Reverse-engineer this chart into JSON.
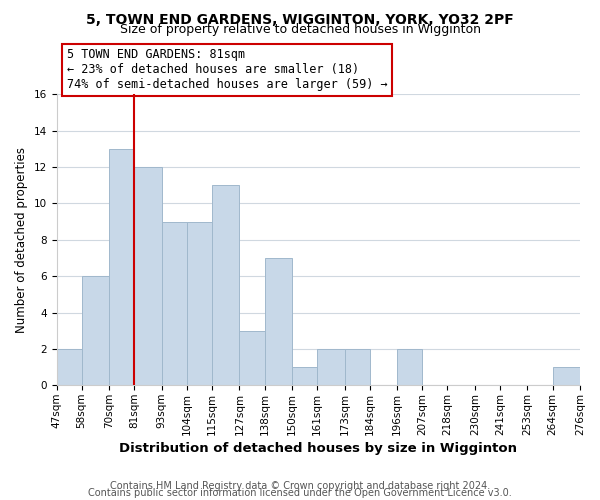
{
  "title": "5, TOWN END GARDENS, WIGGINTON, YORK, YO32 2PF",
  "subtitle": "Size of property relative to detached houses in Wigginton",
  "xlabel": "Distribution of detached houses by size in Wigginton",
  "ylabel": "Number of detached properties",
  "bar_left_edges": [
    47,
    58,
    70,
    81,
    93,
    104,
    115,
    127,
    138,
    150,
    161,
    173,
    184,
    196,
    207,
    218,
    230,
    241,
    253,
    264
  ],
  "bar_widths": [
    11,
    12,
    11,
    12,
    11,
    11,
    12,
    11,
    12,
    11,
    12,
    11,
    12,
    11,
    11,
    12,
    11,
    12,
    11,
    12
  ],
  "bar_heights": [
    2,
    6,
    13,
    12,
    9,
    9,
    11,
    3,
    7,
    1,
    2,
    2,
    0,
    2,
    0,
    0,
    0,
    0,
    0,
    1
  ],
  "bar_color": "#c8d8e8",
  "bar_edgecolor": "#a0b8cc",
  "x_tick_labels": [
    "47sqm",
    "58sqm",
    "70sqm",
    "81sqm",
    "93sqm",
    "104sqm",
    "115sqm",
    "127sqm",
    "138sqm",
    "150sqm",
    "161sqm",
    "173sqm",
    "184sqm",
    "196sqm",
    "207sqm",
    "218sqm",
    "230sqm",
    "241sqm",
    "253sqm",
    "264sqm",
    "276sqm"
  ],
  "x_tick_positions": [
    47,
    58,
    70,
    81,
    93,
    104,
    115,
    127,
    138,
    150,
    161,
    173,
    184,
    196,
    207,
    218,
    230,
    241,
    253,
    264,
    276
  ],
  "ylim": [
    0,
    16
  ],
  "yticks": [
    0,
    2,
    4,
    6,
    8,
    10,
    12,
    14,
    16
  ],
  "vline_x": 81,
  "vline_color": "#cc0000",
  "annotation_text": "5 TOWN END GARDENS: 81sqm\n← 23% of detached houses are smaller (18)\n74% of semi-detached houses are larger (59) →",
  "annotation_box_edgecolor": "#cc0000",
  "annotation_box_facecolor": "#ffffff",
  "footer_line1": "Contains HM Land Registry data © Crown copyright and database right 2024.",
  "footer_line2": "Contains public sector information licensed under the Open Government Licence v3.0.",
  "title_fontsize": 10,
  "subtitle_fontsize": 9,
  "xlabel_fontsize": 9.5,
  "ylabel_fontsize": 8.5,
  "tick_fontsize": 7.5,
  "annotation_fontsize": 8.5,
  "footer_fontsize": 7,
  "background_color": "#ffffff",
  "grid_color": "#d0d8e0"
}
